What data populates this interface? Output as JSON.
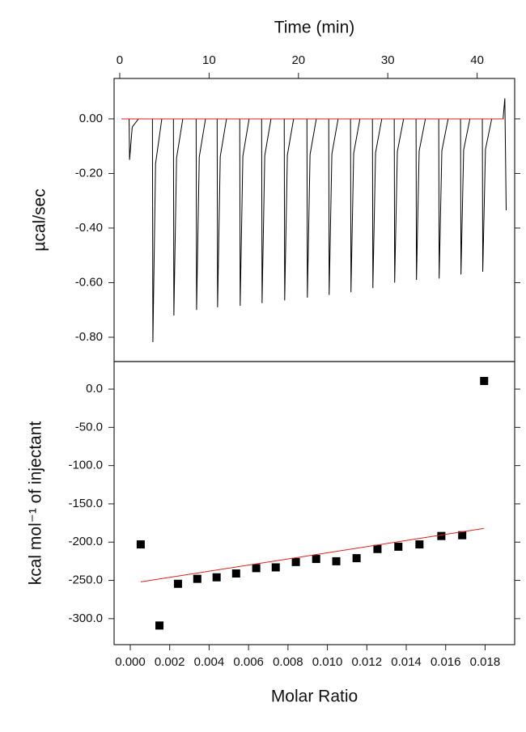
{
  "chart_data": [
    {
      "type": "line",
      "x_label": "Time (min)",
      "y_label": "µcal/sec",
      "xaxis_position": "top",
      "xlim": [
        -0.63,
        44.2
      ],
      "xticks": [
        0,
        10,
        20,
        30,
        40
      ],
      "ylim": [
        -0.889,
        0.148
      ],
      "yticks": [
        {
          "value": 0,
          "label": "0.00"
        },
        {
          "value": -0.2,
          "label": "-0.20"
        },
        {
          "value": -0.4,
          "label": "-0.40"
        },
        {
          "value": -0.6,
          "label": "-0.60"
        },
        {
          "value": -0.8,
          "label": "-0.80"
        }
      ],
      "series": [
        {
          "type": "line",
          "color": "#000000",
          "x": [
            0.2,
            1.05,
            1.1,
            1.4,
            2.1,
            3.66,
            3.71,
            4.01,
            4.71,
            6.01,
            6.06,
            6.36,
            7.06,
            8.55,
            8.6,
            8.9,
            9.6,
            10.9,
            10.95,
            11.25,
            11.95,
            13.43,
            13.48,
            13.78,
            14.48,
            15.88,
            15.93,
            16.23,
            16.93,
            18.41,
            18.46,
            18.76,
            19.46,
            20.95,
            21.0,
            21.3,
            22.0,
            23.39,
            23.44,
            23.74,
            24.44,
            25.83,
            25.88,
            26.18,
            26.88,
            28.28,
            28.33,
            28.63,
            29.33,
            30.72,
            30.77,
            31.07,
            31.77,
            33.16,
            33.21,
            33.51,
            34.21,
            35.7,
            35.75,
            36.05,
            36.75,
            38.14,
            38.19,
            38.49,
            39.19,
            40.58,
            40.63,
            40.93,
            41.63,
            42.9,
            43.1,
            43.25
          ],
          "values": [
            0,
            0,
            -0.15,
            -0.03,
            0,
            0,
            -0.818,
            -0.164,
            0,
            0,
            -0.72,
            -0.144,
            0,
            0,
            -0.7,
            -0.14,
            0,
            0,
            -0.69,
            -0.138,
            0,
            0,
            -0.685,
            -0.137,
            0,
            0,
            -0.675,
            -0.135,
            0,
            0,
            -0.665,
            -0.133,
            0,
            0,
            -0.655,
            -0.131,
            0,
            0,
            -0.645,
            -0.129,
            0,
            0,
            -0.635,
            -0.127,
            0,
            0,
            -0.62,
            -0.124,
            0,
            0,
            -0.6,
            -0.12,
            0,
            0,
            -0.59,
            -0.118,
            0,
            0,
            -0.585,
            -0.117,
            0,
            0,
            -0.57,
            -0.114,
            0,
            0,
            -0.56,
            -0.112,
            0,
            0,
            0.075,
            -0.335
          ]
        },
        {
          "type": "line",
          "color": "#e0201b",
          "x": [
            0.2,
            43.0
          ],
          "values": [
            0,
            0
          ]
        }
      ]
    },
    {
      "type": "scatter",
      "x_label": "Molar Ratio",
      "y_label": "kcal mol⁻¹ of injectant",
      "xaxis_position": "bottom",
      "xlim": [
        -0.00082,
        0.0195
      ],
      "xticks": [
        {
          "value": 0,
          "label": "0.000"
        },
        {
          "value": 0.002,
          "label": "0.002"
        },
        {
          "value": 0.004,
          "label": "0.004"
        },
        {
          "value": 0.006,
          "label": "0.006"
        },
        {
          "value": 0.008,
          "label": "0.008"
        },
        {
          "value": 0.01,
          "label": "0.010"
        },
        {
          "value": 0.012,
          "label": "0.012"
        },
        {
          "value": 0.014,
          "label": "0.014"
        },
        {
          "value": 0.016,
          "label": "0.016"
        },
        {
          "value": 0.018,
          "label": "0.018"
        }
      ],
      "ylim": [
        -334,
        36
      ],
      "yticks": [
        {
          "value": 0,
          "label": "0.0"
        },
        {
          "value": -50,
          "label": "-50.0"
        },
        {
          "value": -100,
          "label": "-100.0"
        },
        {
          "value": -150,
          "label": "-150.0"
        },
        {
          "value": -200,
          "label": "-200.0"
        },
        {
          "value": -250,
          "label": "-250.0"
        },
        {
          "value": -300,
          "label": "-300.0"
        }
      ],
      "series": [
        {
          "type": "scatter",
          "color": "#000000",
          "x": [
            0.00053,
            0.00148,
            0.00242,
            0.0034,
            0.00438,
            0.00537,
            0.00639,
            0.00738,
            0.0084,
            0.00943,
            0.01045,
            0.01148,
            0.01254,
            0.0136,
            0.01467,
            0.01578,
            0.01684,
            0.01795
          ],
          "values": [
            -203,
            -309,
            -254.5,
            -248,
            -246,
            -241,
            -234,
            -233,
            -226,
            -222,
            -225,
            -221,
            -209,
            -206,
            -203,
            -192,
            -191,
            10.6
          ]
        },
        {
          "type": "line",
          "color": "#e0201b",
          "x": [
            0.00053,
            0.01795
          ],
          "values": [
            -252,
            -182
          ]
        }
      ]
    }
  ]
}
